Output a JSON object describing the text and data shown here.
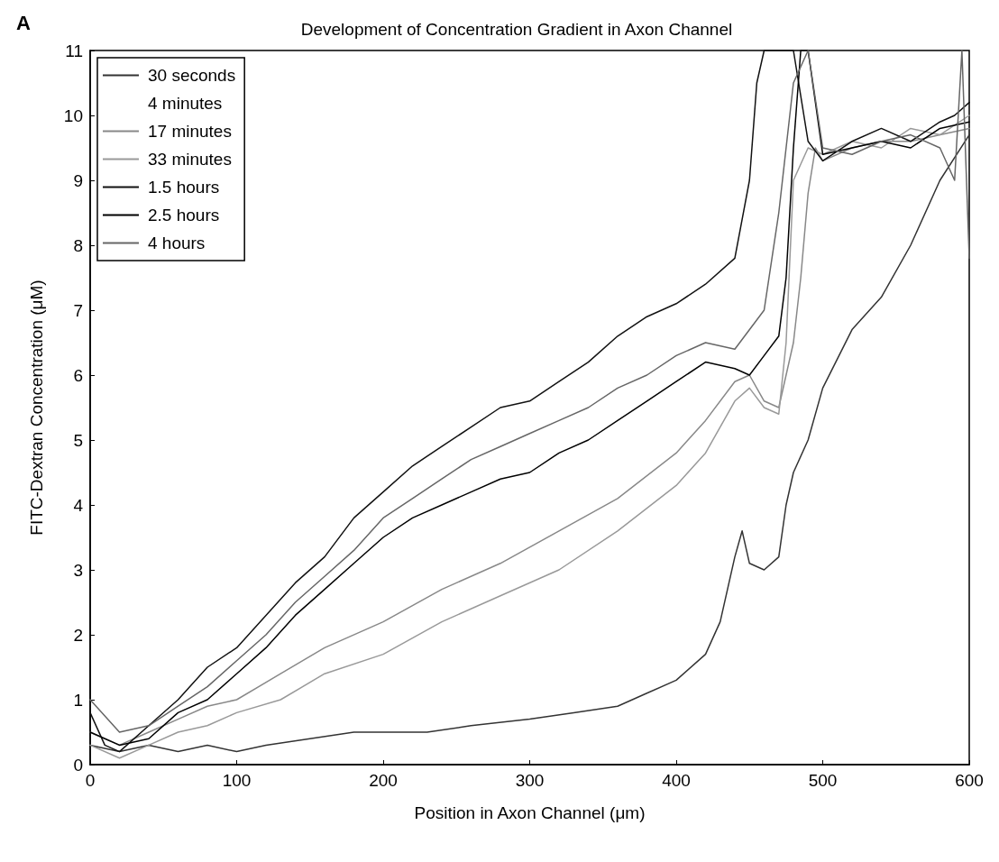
{
  "chart_data": {
    "type": "line",
    "title": "Development of Concentration Gradient in Axon Channel",
    "xlabel": "Position in Axon Channel (μm)",
    "ylabel": "FITC-Dextran Concentration (μM)",
    "annotations": [
      "A"
    ],
    "xlim": [
      0,
      600
    ],
    "xticks": [
      0,
      100,
      200,
      300,
      400,
      500,
      600
    ],
    "ylim": [
      0,
      11
    ],
    "yticks": [
      0,
      1,
      2,
      3,
      4,
      5,
      6,
      7,
      8,
      9,
      10,
      11
    ],
    "grid": false,
    "legend": "top left",
    "marker": "none",
    "line_style": "solid",
    "series": [
      {
        "name": "30 seconds",
        "color": "#333333",
        "x": [
          0,
          20,
          40,
          60,
          80,
          100,
          120,
          150,
          180,
          200,
          230,
          260,
          300,
          330,
          360,
          380,
          400,
          420,
          430,
          440,
          445,
          450,
          460,
          470,
          475,
          480,
          490,
          500,
          520,
          540,
          560,
          580,
          600
        ],
        "values": [
          0.3,
          0.2,
          0.3,
          0.2,
          0.3,
          0.2,
          0.3,
          0.4,
          0.5,
          0.5,
          0.5,
          0.6,
          0.7,
          0.8,
          0.9,
          1.1,
          1.3,
          1.7,
          2.2,
          3.2,
          3.6,
          3.1,
          3.0,
          3.2,
          4.0,
          4.5,
          5.0,
          5.8,
          6.7,
          7.2,
          8.0,
          9.0,
          9.7
        ]
      },
      {
        "name": "4 minutes"
      },
      {
        "name": "17 minutes",
        "color": "#888888",
        "x": [
          0,
          20,
          40,
          60,
          80,
          100,
          130,
          160,
          200,
          240,
          280,
          320,
          360,
          400,
          420,
          440,
          450,
          460,
          470,
          480,
          485,
          490,
          495,
          500,
          520,
          540,
          560,
          580,
          600
        ],
        "values": [
          0.5,
          0.3,
          0.5,
          0.7,
          0.9,
          1.0,
          1.4,
          1.8,
          2.2,
          2.7,
          3.1,
          3.6,
          4.1,
          4.8,
          5.3,
          5.9,
          6.0,
          5.6,
          5.5,
          6.5,
          7.5,
          8.8,
          9.5,
          9.3,
          9.5,
          9.6,
          9.6,
          9.7,
          9.8
        ]
      },
      {
        "name": "33 minutes",
        "color": "#999999",
        "x": [
          0,
          20,
          40,
          60,
          80,
          100,
          130,
          160,
          200,
          240,
          280,
          320,
          360,
          400,
          420,
          440,
          450,
          460,
          470,
          475,
          480,
          490,
          500,
          520,
          540,
          560,
          580,
          600
        ],
        "values": [
          0.3,
          0.1,
          0.3,
          0.5,
          0.6,
          0.8,
          1.0,
          1.4,
          1.7,
          2.2,
          2.6,
          3.0,
          3.6,
          4.3,
          4.8,
          5.6,
          5.8,
          5.5,
          5.4,
          6.5,
          9.0,
          9.5,
          9.4,
          9.6,
          9.5,
          9.8,
          9.7,
          10.0
        ]
      },
      {
        "name": "1.5 hours",
        "color": "#111111",
        "x": [
          0,
          10,
          20,
          40,
          60,
          80,
          100,
          120,
          140,
          160,
          180,
          200,
          220,
          240,
          260,
          280,
          300,
          320,
          340,
          360,
          380,
          400,
          420,
          440,
          450,
          455,
          460,
          465,
          480,
          490,
          500,
          520,
          540,
          560,
          580,
          590,
          600
        ],
        "values": [
          0.8,
          0.3,
          0.2,
          0.6,
          1.0,
          1.5,
          1.8,
          2.3,
          2.8,
          3.2,
          3.8,
          4.2,
          4.6,
          4.9,
          5.2,
          5.5,
          5.6,
          5.9,
          6.2,
          6.6,
          6.9,
          7.1,
          7.4,
          7.8,
          9.0,
          10.5,
          11,
          11,
          11,
          9.6,
          9.3,
          9.6,
          9.8,
          9.6,
          9.9,
          10.0,
          10.2
        ]
      },
      {
        "name": "2.5 hours",
        "color": "#000000",
        "x": [
          0,
          20,
          40,
          60,
          80,
          100,
          120,
          140,
          160,
          180,
          200,
          220,
          240,
          260,
          280,
          300,
          320,
          340,
          360,
          380,
          400,
          420,
          440,
          450,
          460,
          470,
          475,
          480,
          485,
          490,
          500,
          520,
          540,
          560,
          580,
          600
        ],
        "values": [
          0.5,
          0.3,
          0.4,
          0.8,
          1.0,
          1.4,
          1.8,
          2.3,
          2.7,
          3.1,
          3.5,
          3.8,
          4.0,
          4.2,
          4.4,
          4.5,
          4.8,
          5.0,
          5.3,
          5.6,
          5.9,
          6.2,
          6.1,
          6.0,
          6.3,
          6.6,
          7.5,
          9.5,
          11,
          11,
          9.4,
          9.5,
          9.6,
          9.5,
          9.8,
          9.9
        ]
      },
      {
        "name": "4 hours",
        "color": "#666666",
        "x": [
          0,
          20,
          40,
          60,
          80,
          100,
          120,
          140,
          160,
          180,
          200,
          220,
          240,
          260,
          280,
          300,
          320,
          340,
          360,
          380,
          400,
          420,
          440,
          460,
          470,
          480,
          490,
          500,
          520,
          540,
          560,
          580,
          590,
          595,
          600
        ],
        "values": [
          1.0,
          0.5,
          0.6,
          0.9,
          1.2,
          1.6,
          2.0,
          2.5,
          2.9,
          3.3,
          3.8,
          4.1,
          4.4,
          4.7,
          4.9,
          5.1,
          5.3,
          5.5,
          5.8,
          6.0,
          6.3,
          6.5,
          6.4,
          7.0,
          8.5,
          10.5,
          11,
          9.5,
          9.4,
          9.6,
          9.7,
          9.5,
          9.0,
          11,
          7.8
        ]
      }
    ]
  }
}
